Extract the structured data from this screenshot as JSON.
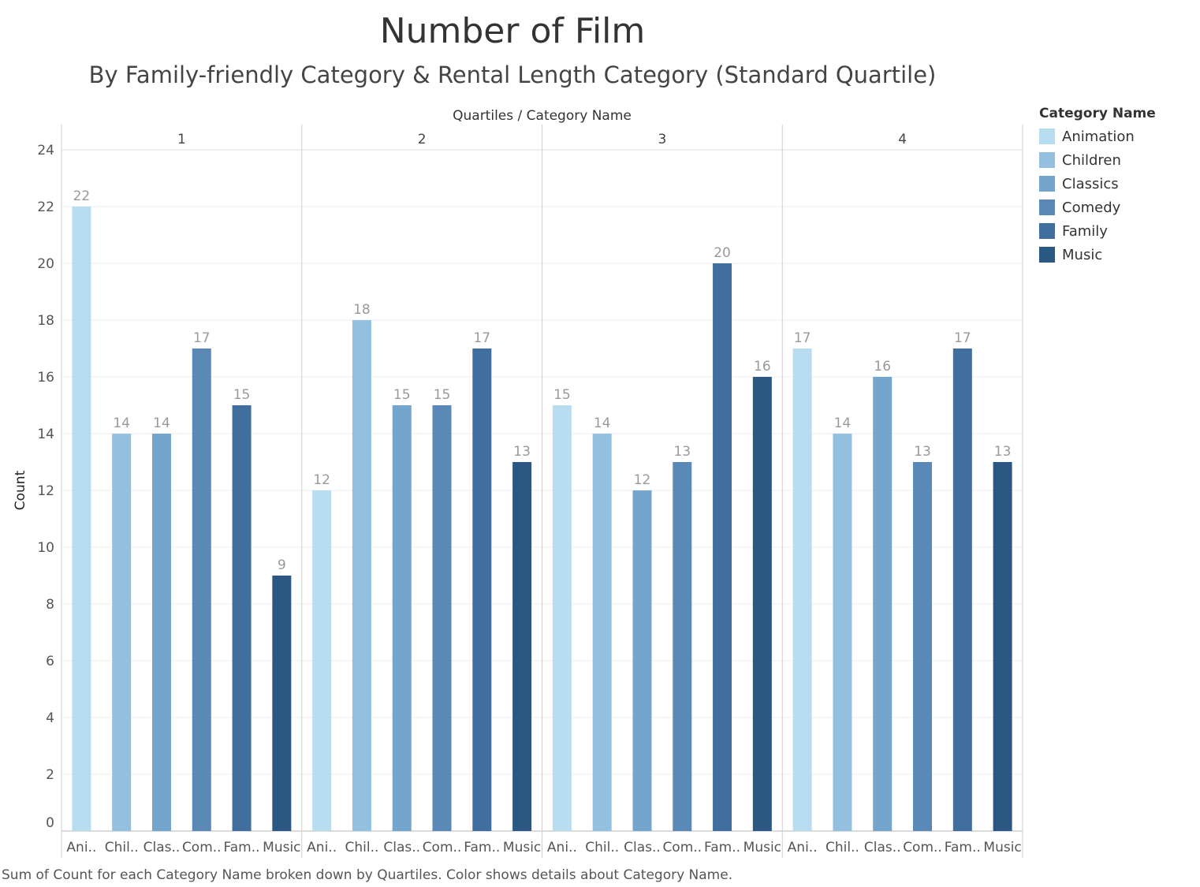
{
  "chart_data": {
    "type": "bar",
    "title": "Number of Film",
    "subtitle": "By Family-friendly Category & Rental Length Category (Standard Quartile)",
    "column_header": "Quartiles  /  Category Name",
    "ylabel": "Count",
    "ylim": [
      0,
      24
    ],
    "yticks": [
      0,
      2,
      4,
      6,
      8,
      10,
      12,
      14,
      16,
      18,
      20,
      22,
      24
    ],
    "grid": true,
    "legend_position": "right",
    "legend_title": "Category Name",
    "categories": [
      "Animation",
      "Children",
      "Classics",
      "Comedy",
      "Family",
      "Music"
    ],
    "category_tick_labels": [
      "Ani..",
      "Chil..",
      "Clas..",
      "Com..",
      "Fam..",
      "Music"
    ],
    "colors": [
      "#b9ddf0",
      "#94c0e0",
      "#74a6cd",
      "#5a89b8",
      "#406e9e",
      "#2b5883"
    ],
    "panels": [
      {
        "label": "1",
        "values": [
          22,
          14,
          14,
          17,
          15,
          9
        ]
      },
      {
        "label": "2",
        "values": [
          12,
          18,
          15,
          15,
          17,
          13
        ]
      },
      {
        "label": "3",
        "values": [
          15,
          14,
          12,
          13,
          20,
          16
        ]
      },
      {
        "label": "4",
        "values": [
          17,
          14,
          16,
          13,
          17,
          13
        ]
      }
    ],
    "caption": "Sum of Count for each Category Name broken down by Quartiles.  Color shows details about Category Name."
  }
}
